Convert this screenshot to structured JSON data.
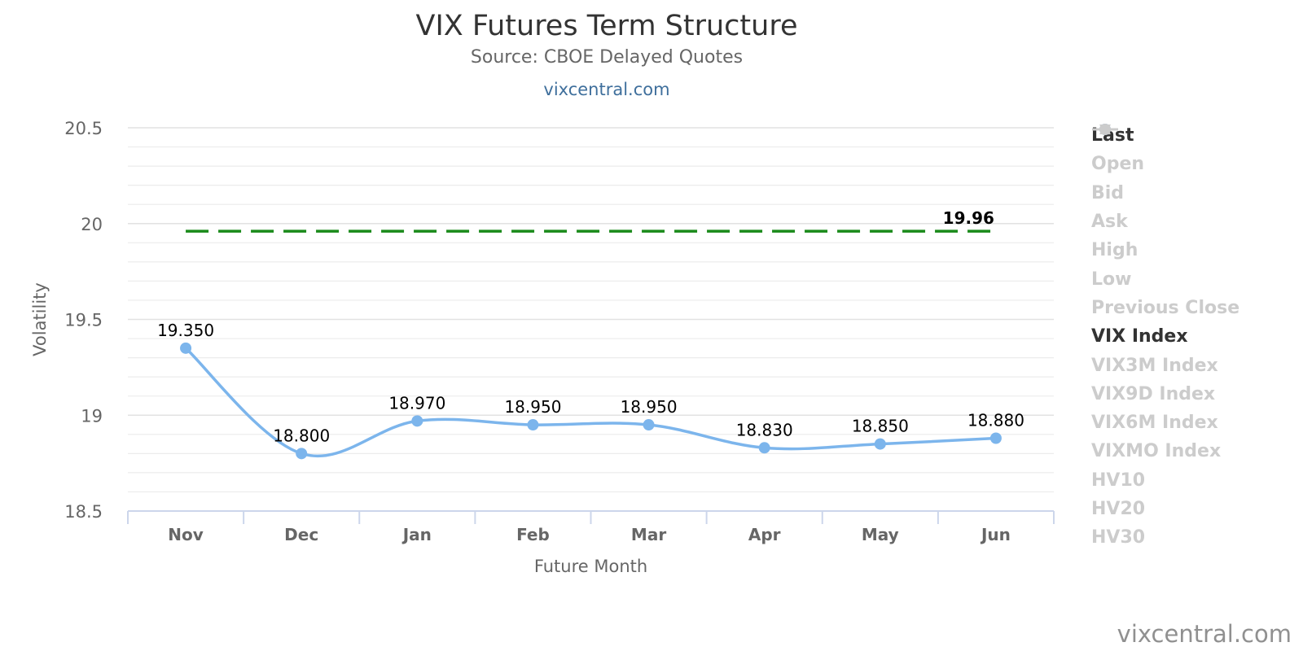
{
  "header": {
    "title": "VIX Futures Term Structure",
    "subtitle": "Source: CBOE Delayed Quotes",
    "link": "vixcentral.com"
  },
  "credit": "vixcentral.com",
  "colors": {
    "last": "#7cb5ec",
    "vix_index": "#1a8a1a",
    "hidden": "#cccccc",
    "grid": "#e6e6e6"
  },
  "chart_data": {
    "type": "line",
    "xlabel": "Future Month",
    "ylabel": "Volatility",
    "categories": [
      "Nov",
      "Dec",
      "Jan",
      "Feb",
      "Mar",
      "Apr",
      "May",
      "Jun"
    ],
    "ylim": [
      18.5,
      20.5
    ],
    "yticks": [
      "18.5",
      "19",
      "19.5",
      "20",
      "20.5"
    ],
    "grid": true,
    "legend_position": "right",
    "series": [
      {
        "name": "Last",
        "values": [
          19.35,
          18.8,
          18.97,
          18.95,
          18.95,
          18.83,
          18.85,
          18.88
        ],
        "labels": [
          "19.350",
          "18.800",
          "18.970",
          "18.950",
          "18.950",
          "18.830",
          "18.850",
          "18.880"
        ],
        "style": "spline-markers"
      },
      {
        "name": "VIX Index",
        "values": [
          19.96,
          19.96,
          19.96,
          19.96,
          19.96,
          19.96,
          19.96,
          19.96
        ],
        "end_label": "19.96",
        "style": "dashed"
      }
    ]
  },
  "legend": [
    {
      "name": "Last",
      "symbol": "circle-line",
      "visible": true
    },
    {
      "name": "Open",
      "symbol": "diamond-line",
      "visible": false
    },
    {
      "name": "Bid",
      "symbol": "square-line",
      "visible": false
    },
    {
      "name": "Ask",
      "symbol": "triangle-line",
      "visible": false
    },
    {
      "name": "High",
      "symbol": "triangle-down-line",
      "visible": false
    },
    {
      "name": "Low",
      "symbol": "circle-line",
      "visible": false
    },
    {
      "name": "Previous Close",
      "symbol": "diamond-line",
      "visible": false
    },
    {
      "name": "VIX Index",
      "symbol": "line",
      "visible": true
    },
    {
      "name": "VIX3M Index",
      "symbol": "line",
      "visible": false
    },
    {
      "name": "VIX9D Index",
      "symbol": "line",
      "visible": false
    },
    {
      "name": "VIX6M Index",
      "symbol": "dotted",
      "visible": false
    },
    {
      "name": "VIXMO Index",
      "symbol": "dashed",
      "visible": false
    },
    {
      "name": "HV10",
      "symbol": "dashed",
      "visible": false
    },
    {
      "name": "HV20",
      "symbol": "dashed",
      "visible": false
    },
    {
      "name": "HV30",
      "symbol": "dashed",
      "visible": false
    }
  ]
}
